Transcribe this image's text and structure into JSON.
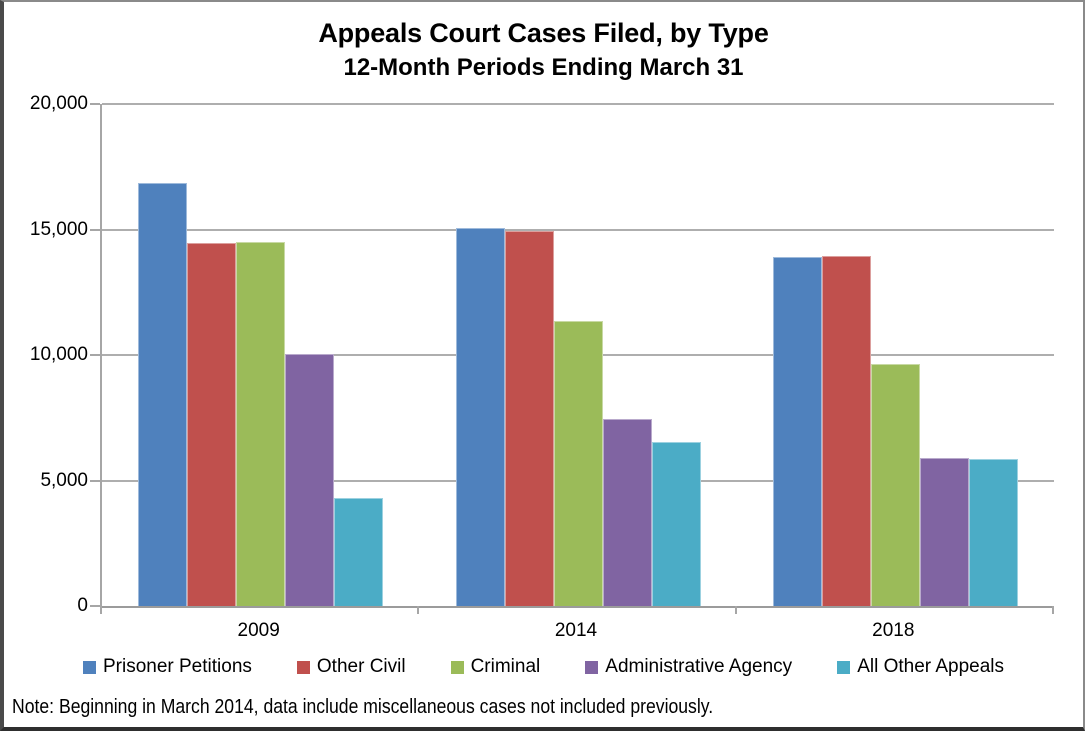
{
  "title": "Appeals Court Cases Filed, by Type",
  "subtitle": "12-Month Periods Ending March 31",
  "note": "Note: Beginning in March 2014, data include miscellaneous cases not included previously.",
  "chart_data": {
    "type": "bar",
    "title": "Appeals Court Cases Filed, by Type",
    "subtitle": "12-Month Periods Ending March 31",
    "categories": [
      "2009",
      "2014",
      "2018"
    ],
    "series": [
      {
        "name": "Prisoner Petitions",
        "color": "#4F81BD",
        "values": [
          16850,
          15050,
          13900
        ]
      },
      {
        "name": "Other Civil",
        "color": "#C0504D",
        "values": [
          14450,
          14950,
          13950
        ]
      },
      {
        "name": "Criminal",
        "color": "#9BBB59",
        "values": [
          14500,
          11350,
          9650
        ]
      },
      {
        "name": "Administrative Agency",
        "color": "#8064A2",
        "values": [
          10050,
          7450,
          5900
        ]
      },
      {
        "name": "All Other Appeals",
        "color": "#4BACC6",
        "values": [
          4300,
          6550,
          5850
        ]
      }
    ],
    "xlabel": "",
    "ylabel": "",
    "ylim": [
      0,
      20000
    ],
    "ytick_interval": 5000,
    "ytick_labels": [
      "0",
      "5,000",
      "10,000",
      "15,000",
      "20,000"
    ],
    "grid": true,
    "legend_position": "bottom"
  },
  "colors": {
    "gridline": "#AEAEAE",
    "axis": "#A6A6A6",
    "text": "#000000",
    "background": "#FFFFFF"
  }
}
